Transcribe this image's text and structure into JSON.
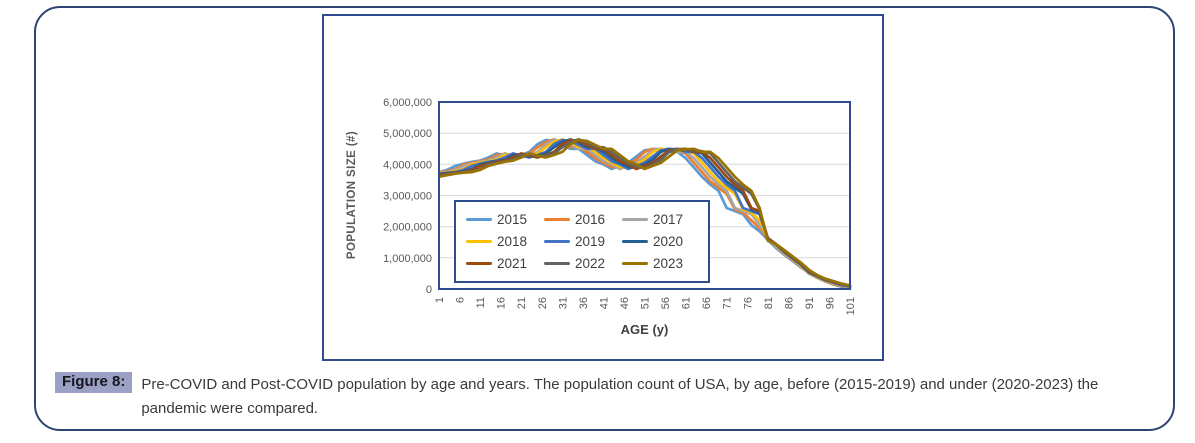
{
  "caption": {
    "label": "Figure 8:",
    "text": "Pre-COVID and Post-COVID population by age and years. The population count of USA, by age, before (2015-2019) and under (2020-2023) the pandemic were compared."
  },
  "chart_data": {
    "type": "line",
    "title": "",
    "xlabel": "AGE (y)",
    "ylabel": "POPULATION SIZE (#)",
    "xlim": [
      1,
      101
    ],
    "ylim": [
      0,
      6000000
    ],
    "ylim_millions": 6,
    "grid": true,
    "legend_position": "inside-bottom-left",
    "values_unit": "persons",
    "values_scale": "millions",
    "x_ticks": [
      1,
      6,
      11,
      16,
      21,
      26,
      31,
      36,
      41,
      46,
      51,
      56,
      61,
      66,
      71,
      76,
      81,
      86,
      91,
      96,
      101
    ],
    "y_ticks": [
      "0",
      "1,000,000",
      "2,000,000",
      "3,000,000",
      "4,000,000",
      "5,000,000",
      "6,000,000"
    ],
    "colors": {
      "grid": "#D9D9D9",
      "tick_text": "#595959",
      "axis_title": "#404040",
      "axis_frame": "#2F4B8F",
      "chart_border": "#2F4B8F",
      "legend_border": "#2F4B8F",
      "outer_border": "#2E4472",
      "badge_bg": "#9AA1C5",
      "badge_text": "#16161E",
      "caption_text": "#3A3A3A"
    },
    "x": [
      1,
      3,
      5,
      7,
      9,
      11,
      13,
      15,
      17,
      19,
      21,
      23,
      25,
      27,
      29,
      31,
      33,
      35,
      37,
      39,
      41,
      43,
      45,
      47,
      49,
      51,
      53,
      55,
      57,
      59,
      61,
      63,
      65,
      67,
      69,
      71,
      73,
      75,
      77,
      79,
      81,
      83,
      85,
      87,
      89,
      91,
      93,
      95,
      97,
      99,
      101
    ],
    "series": [
      {
        "name": "2015",
        "color": "#5B9BD5",
        "values_millions": [
          3.75,
          3.82,
          3.95,
          4.02,
          4.08,
          4.12,
          4.22,
          4.35,
          4.28,
          4.22,
          4.3,
          4.4,
          4.65,
          4.78,
          4.75,
          4.62,
          4.5,
          4.5,
          4.3,
          4.1,
          4.0,
          3.85,
          3.95,
          4.05,
          4.25,
          4.45,
          4.48,
          4.5,
          4.4,
          4.4,
          4.2,
          3.9,
          3.6,
          3.35,
          3.15,
          2.6,
          2.5,
          2.4,
          2.05,
          1.85,
          1.58,
          1.32,
          1.1,
          0.9,
          0.7,
          0.52,
          0.37,
          0.24,
          0.14,
          0.07,
          0.03
        ]
      },
      {
        "name": "2016",
        "color": "#ED7D31",
        "values_millions": [
          3.74,
          3.78,
          3.85,
          4.0,
          4.05,
          4.1,
          4.15,
          4.3,
          4.32,
          4.25,
          4.28,
          4.35,
          4.55,
          4.72,
          4.8,
          4.7,
          4.55,
          4.55,
          4.4,
          4.2,
          4.05,
          3.92,
          3.88,
          4.0,
          4.15,
          4.4,
          4.5,
          4.45,
          4.45,
          4.42,
          4.35,
          4.05,
          3.75,
          3.45,
          3.25,
          3.05,
          2.55,
          2.45,
          2.2,
          1.95,
          1.62,
          1.36,
          1.12,
          0.92,
          0.72,
          0.5,
          0.36,
          0.24,
          0.15,
          0.09,
          0.05
        ]
      },
      {
        "name": "2017",
        "color": "#A5A5A5",
        "values_millions": [
          3.73,
          3.75,
          3.82,
          3.95,
          4.02,
          4.08,
          4.12,
          4.22,
          4.35,
          4.28,
          4.22,
          4.3,
          4.4,
          4.65,
          4.78,
          4.75,
          4.62,
          4.5,
          4.5,
          4.3,
          4.1,
          4.0,
          3.85,
          3.95,
          4.05,
          4.25,
          4.45,
          4.48,
          4.5,
          4.4,
          4.4,
          4.2,
          3.9,
          3.6,
          3.35,
          3.15,
          2.6,
          2.5,
          2.4,
          2.05,
          1.64,
          1.38,
          1.14,
          0.94,
          0.74,
          0.49,
          0.36,
          0.25,
          0.17,
          0.1,
          0.06
        ]
      },
      {
        "name": "2018",
        "color": "#FFC000",
        "values_millions": [
          3.72,
          3.74,
          3.78,
          3.85,
          4.0,
          4.05,
          4.1,
          4.15,
          4.3,
          4.32,
          4.25,
          4.28,
          4.35,
          4.55,
          4.72,
          4.8,
          4.7,
          4.55,
          4.55,
          4.4,
          4.2,
          4.05,
          3.92,
          3.88,
          4.0,
          4.15,
          4.4,
          4.5,
          4.45,
          4.45,
          4.42,
          4.35,
          4.05,
          3.75,
          3.45,
          3.25,
          3.05,
          2.55,
          2.45,
          2.2,
          1.62,
          1.4,
          1.16,
          0.96,
          0.76,
          0.51,
          0.38,
          0.26,
          0.18,
          0.11,
          0.07
        ]
      },
      {
        "name": "2019",
        "color": "#4472C4",
        "values_millions": [
          3.7,
          3.73,
          3.75,
          3.82,
          3.95,
          4.02,
          4.08,
          4.12,
          4.22,
          4.35,
          4.28,
          4.22,
          4.3,
          4.4,
          4.65,
          4.78,
          4.75,
          4.62,
          4.5,
          4.5,
          4.3,
          4.1,
          4.0,
          3.85,
          3.95,
          4.05,
          4.25,
          4.45,
          4.48,
          4.5,
          4.4,
          4.4,
          4.2,
          3.9,
          3.6,
          3.35,
          3.15,
          2.6,
          2.5,
          2.4,
          1.6,
          1.42,
          1.18,
          0.98,
          0.78,
          0.53,
          0.4,
          0.28,
          0.2,
          0.12,
          0.08
        ]
      },
      {
        "name": "2020",
        "color": "#255E91",
        "values_millions": [
          3.68,
          3.72,
          3.74,
          3.78,
          3.85,
          4.0,
          4.05,
          4.1,
          4.15,
          4.3,
          4.32,
          4.25,
          4.28,
          4.35,
          4.55,
          4.72,
          4.8,
          4.7,
          4.55,
          4.55,
          4.4,
          4.2,
          4.05,
          3.92,
          3.88,
          4.0,
          4.15,
          4.4,
          4.5,
          4.45,
          4.45,
          4.42,
          4.35,
          4.05,
          3.75,
          3.45,
          3.25,
          3.05,
          2.55,
          2.45,
          1.62,
          1.44,
          1.2,
          1.0,
          0.8,
          0.55,
          0.42,
          0.3,
          0.22,
          0.14,
          0.09
        ]
      },
      {
        "name": "2021",
        "color": "#9E480E",
        "values_millions": [
          3.65,
          3.7,
          3.73,
          3.75,
          3.82,
          3.95,
          4.02,
          4.08,
          4.12,
          4.22,
          4.35,
          4.28,
          4.22,
          4.3,
          4.4,
          4.65,
          4.78,
          4.75,
          4.62,
          4.5,
          4.5,
          4.3,
          4.1,
          4.0,
          3.85,
          3.95,
          4.05,
          4.25,
          4.45,
          4.48,
          4.5,
          4.4,
          4.4,
          4.2,
          3.9,
          3.6,
          3.35,
          3.15,
          2.6,
          2.5,
          1.64,
          1.44,
          1.22,
          1.02,
          0.82,
          0.57,
          0.43,
          0.31,
          0.23,
          0.15,
          0.1
        ]
      },
      {
        "name": "2022",
        "color": "#636363",
        "values_millions": [
          3.62,
          3.68,
          3.72,
          3.74,
          3.78,
          3.85,
          4.0,
          4.05,
          4.1,
          4.15,
          4.3,
          4.32,
          4.25,
          4.28,
          4.35,
          4.55,
          4.72,
          4.8,
          4.7,
          4.55,
          4.55,
          4.4,
          4.2,
          4.05,
          3.92,
          3.88,
          4.0,
          4.15,
          4.4,
          4.5,
          4.45,
          4.45,
          4.42,
          4.35,
          4.05,
          3.75,
          3.45,
          3.25,
          3.05,
          2.55,
          1.6,
          1.43,
          1.24,
          1.04,
          0.84,
          0.6,
          0.44,
          0.32,
          0.24,
          0.16,
          0.11
        ]
      },
      {
        "name": "2023",
        "color": "#997300",
        "values_millions": [
          3.6,
          3.65,
          3.7,
          3.73,
          3.75,
          3.82,
          3.95,
          4.02,
          4.08,
          4.12,
          4.22,
          4.35,
          4.28,
          4.22,
          4.3,
          4.4,
          4.65,
          4.78,
          4.75,
          4.62,
          4.5,
          4.5,
          4.3,
          4.1,
          4.0,
          3.85,
          3.95,
          4.05,
          4.25,
          4.45,
          4.48,
          4.5,
          4.4,
          4.4,
          4.2,
          3.9,
          3.6,
          3.35,
          3.15,
          2.6,
          1.55,
          1.44,
          1.25,
          1.05,
          0.85,
          0.62,
          0.45,
          0.33,
          0.25,
          0.17,
          0.12
        ]
      }
    ]
  }
}
